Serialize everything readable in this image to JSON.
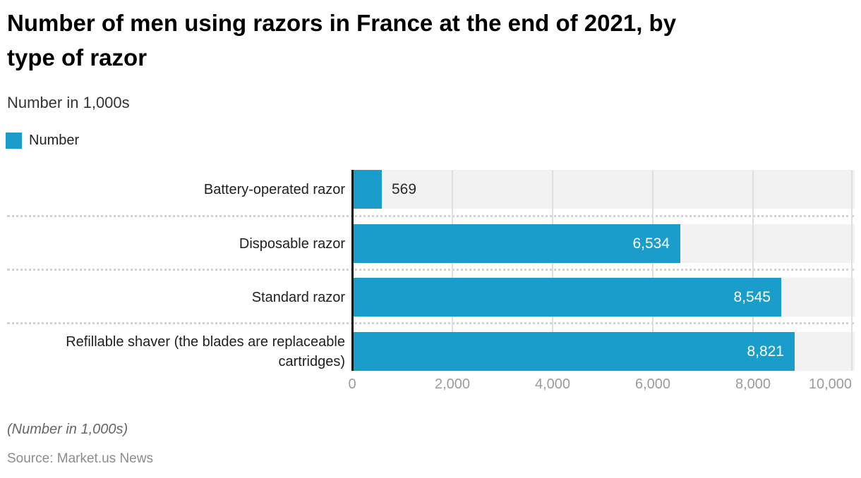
{
  "header": {
    "title_lines": [
      "Number of men using razors in France at the end of 2021, by",
      "type of razor"
    ],
    "subtitle": "Number in 1,000s"
  },
  "legend": {
    "label": "Number",
    "color": "#1a9dcb"
  },
  "chart_data": {
    "type": "bar",
    "orientation": "horizontal",
    "title": "Number of men using razors in France at the end of 2021, by type of razor",
    "subtitle": "Number in 1,000s",
    "categories": [
      "Battery-operated razor",
      "Disposable razor",
      "Standard razor",
      "Refillable shaver (the blades are replaceable cartridges)"
    ],
    "series": [
      {
        "name": "Number",
        "values": [
          569,
          6534,
          8545,
          8821
        ]
      }
    ],
    "value_labels": [
      "569",
      "6,534",
      "8,545",
      "8,821"
    ],
    "x_ticks": [
      "0",
      "2,000",
      "4,000",
      "6,000",
      "8,000",
      "10,000"
    ],
    "xlim": [
      0,
      10000
    ],
    "grid": true,
    "legend_position": "top-left",
    "bar_color": "#1a9dcb",
    "band_color": "#f2f2f2"
  },
  "footer": {
    "note": "(Number in 1,000s)",
    "source": "Source: Market.us News"
  }
}
